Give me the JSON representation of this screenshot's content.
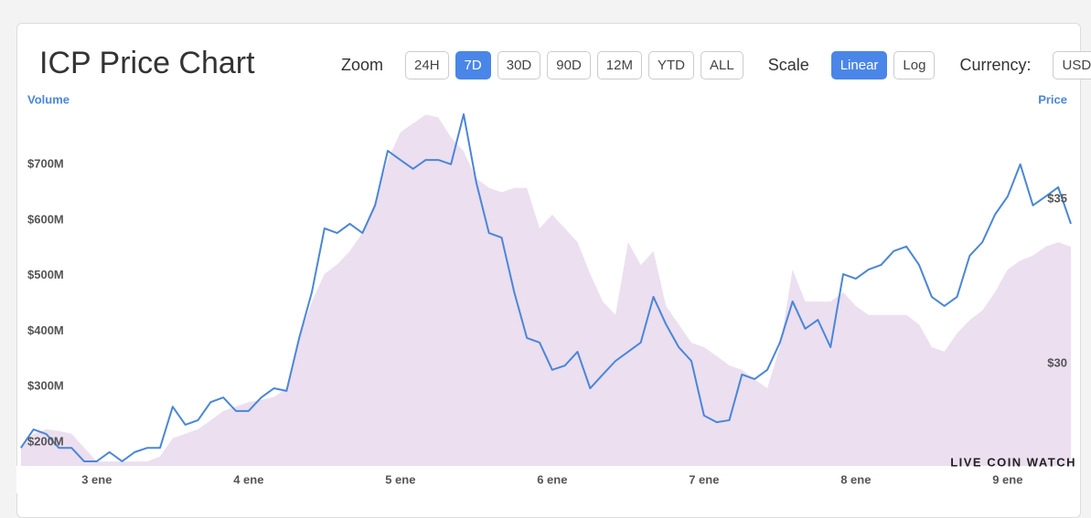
{
  "header": {
    "title": "ICP Price Chart",
    "zoom": {
      "label": "Zoom",
      "options": [
        "24H",
        "7D",
        "30D",
        "90D",
        "12M",
        "YTD",
        "ALL"
      ],
      "selected": 1
    },
    "scale": {
      "label": "Scale",
      "options": [
        "Linear",
        "Log"
      ],
      "selected": 0
    },
    "currency": {
      "label": "Currency:",
      "options": [
        "USD"
      ]
    }
  },
  "chart_data": {
    "type": "line",
    "y_label": "Volume",
    "y2_label": "Price",
    "watermark": "LIVE COIN WATCH",
    "xlim": [
      35.3,
      203.3
    ],
    "xticks": [
      {
        "value": 48,
        "label": "3 ene"
      },
      {
        "value": 72,
        "label": "4 ene"
      },
      {
        "value": 96,
        "label": "5 ene"
      },
      {
        "value": 120,
        "label": "6 ene"
      },
      {
        "value": 144,
        "label": "7 ene"
      },
      {
        "value": 168,
        "label": "8 ene"
      },
      {
        "value": 192,
        "label": "9 ene"
      }
    ],
    "ylim": [
      157,
      799
    ],
    "yticks": [
      {
        "value": 200,
        "label": "$200M"
      },
      {
        "value": 300,
        "label": "$300M"
      },
      {
        "value": 400,
        "label": "$400M"
      },
      {
        "value": 500,
        "label": "$500M"
      },
      {
        "value": 600,
        "label": "$600M"
      },
      {
        "value": 700,
        "label": "$700M"
      }
    ],
    "y2lim": [
      26.89,
      37.72
    ],
    "y2ticks": [
      {
        "value": 30,
        "label": "$30"
      },
      {
        "value": 35,
        "label": "$35"
      }
    ],
    "x": [
      36,
      38,
      40,
      42,
      44,
      46,
      48,
      50,
      52,
      54,
      56,
      58,
      60,
      62,
      64,
      66,
      68,
      70,
      72,
      74,
      76,
      78,
      80,
      82,
      84,
      86,
      88,
      90,
      92,
      94,
      96,
      98,
      100,
      102,
      104,
      106,
      108,
      110,
      112,
      114,
      116,
      118,
      120,
      122,
      124,
      126,
      128,
      130,
      132,
      134,
      136,
      138,
      140,
      142,
      144,
      146,
      148,
      150,
      152,
      154,
      156,
      158,
      160,
      162,
      164,
      166,
      168,
      170,
      172,
      174,
      176,
      178,
      180,
      182,
      184,
      186,
      188,
      190,
      192,
      194,
      196,
      198,
      200,
      202
    ],
    "series": [
      {
        "type": "area",
        "color": "#ebdff0",
        "values": [
          190,
          215,
          223,
          220,
          215,
          190,
          165,
          165,
          165,
          165,
          165,
          174,
          207,
          215,
          223,
          239,
          256,
          264,
          272,
          276,
          281,
          297,
          388,
          453,
          503,
          520,
          544,
          577,
          634,
          708,
          758,
          774,
          790,
          785,
          749,
          724,
          675,
          658,
          650,
          658,
          658,
          585,
          610,
          585,
          560,
          503,
          453,
          429,
          560,
          519,
          544,
          445,
          412,
          379,
          371,
          355,
          338,
          330,
          313,
          297,
          371,
          511,
          453,
          453,
          453,
          470,
          445,
          429,
          429,
          429,
          429,
          412,
          371,
          363,
          396,
          420,
          437,
          470,
          511,
          527,
          536,
          552,
          560,
          552
        ]
      },
      {
        "type": "line",
        "axis": "y2",
        "color": "#4a86d8",
        "values": [
          27.44,
          28.0,
          27.86,
          27.44,
          27.44,
          27.03,
          27.03,
          27.31,
          27.03,
          27.31,
          27.44,
          27.44,
          28.69,
          28.14,
          28.28,
          28.83,
          28.97,
          28.56,
          28.56,
          28.97,
          29.25,
          29.17,
          30.78,
          32.17,
          34.11,
          33.97,
          34.25,
          33.97,
          34.81,
          36.47,
          36.19,
          35.92,
          36.19,
          36.19,
          36.06,
          37.58,
          35.5,
          33.97,
          33.83,
          32.17,
          30.78,
          30.64,
          29.81,
          29.94,
          30.36,
          29.25,
          29.67,
          30.08,
          30.36,
          30.64,
          32.03,
          31.19,
          30.5,
          30.08,
          28.42,
          28.22,
          28.28,
          29.67,
          29.53,
          29.81,
          30.64,
          31.89,
          31.06,
          31.33,
          30.5,
          32.72,
          32.58,
          32.86,
          33.0,
          33.42,
          33.56,
          33.0,
          32.03,
          31.75,
          32.03,
          33.28,
          33.69,
          34.53,
          35.08,
          36.06,
          34.81,
          35.08,
          35.36,
          34.25
        ]
      }
    ]
  }
}
